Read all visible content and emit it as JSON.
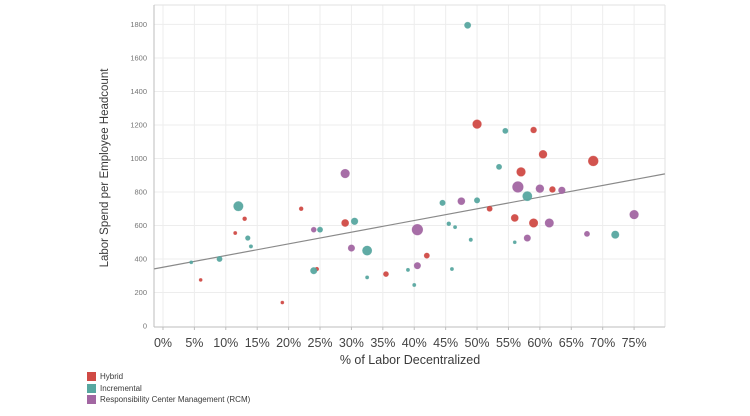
{
  "chart_data": {
    "type": "scatter",
    "title": "",
    "xlabel": "% of Labor Decentralized",
    "ylabel": "Labor Spend per Employee Headcount",
    "x_tick_values": [
      0,
      5,
      10,
      15,
      20,
      25,
      30,
      35,
      40,
      45,
      50,
      55,
      60,
      65,
      70,
      75
    ],
    "x_tick_labels": [
      "0%",
      "5%",
      "10%",
      "15%",
      "20%",
      "25%",
      "30%",
      "35%",
      "40%",
      "45%",
      "50%",
      "55%",
      "60%",
      "65%",
      "70%",
      "75%"
    ],
    "y_tick_values": [
      0,
      200,
      400,
      600,
      800,
      1000,
      1200,
      1400,
      1600,
      1800
    ],
    "y_tick_labels": [
      "0",
      "200",
      "400",
      "600",
      "800",
      "1000",
      "1200",
      "1400",
      "1600",
      "1800"
    ],
    "xlim": [
      -1.43,
      79.92
    ],
    "ylim": [
      0,
      1916
    ],
    "grid": true,
    "legend_position": "bottom-left",
    "series": [
      {
        "name": "Hybrid",
        "color": "#d04a45",
        "points": [
          {
            "x": 50,
            "y": 1205,
            "r": 4.4
          },
          {
            "x": 59,
            "y": 1170,
            "r": 3.0
          },
          {
            "x": 60.5,
            "y": 1025,
            "r": 4.0
          },
          {
            "x": 68.5,
            "y": 985,
            "r": 5.0
          },
          {
            "x": 57,
            "y": 920,
            "r": 4.4
          },
          {
            "x": 62,
            "y": 815,
            "r": 3.0
          },
          {
            "x": 52,
            "y": 700,
            "r": 2.7
          },
          {
            "x": 56,
            "y": 645,
            "r": 3.6
          },
          {
            "x": 59,
            "y": 615,
            "r": 4.3
          },
          {
            "x": 29,
            "y": 615,
            "r": 3.6
          },
          {
            "x": 22,
            "y": 700,
            "r": 2.0
          },
          {
            "x": 13,
            "y": 640,
            "r": 2.0
          },
          {
            "x": 11.5,
            "y": 555,
            "r": 1.7
          },
          {
            "x": 42,
            "y": 420,
            "r": 2.7
          },
          {
            "x": 35.5,
            "y": 310,
            "r": 2.6
          },
          {
            "x": 24.5,
            "y": 340,
            "r": 1.9
          },
          {
            "x": 6,
            "y": 275,
            "r": 1.6
          },
          {
            "x": 19,
            "y": 140,
            "r": 1.6
          }
        ]
      },
      {
        "name": "Incremental",
        "color": "#57a7a0",
        "points": [
          {
            "x": 48.5,
            "y": 1795,
            "r": 3.2
          },
          {
            "x": 54.5,
            "y": 1165,
            "r": 2.7
          },
          {
            "x": 53.5,
            "y": 950,
            "r": 2.7
          },
          {
            "x": 58,
            "y": 775,
            "r": 4.7
          },
          {
            "x": 50,
            "y": 750,
            "r": 2.8
          },
          {
            "x": 44.5,
            "y": 735,
            "r": 2.8
          },
          {
            "x": 12,
            "y": 715,
            "r": 4.8
          },
          {
            "x": 30.5,
            "y": 625,
            "r": 3.4
          },
          {
            "x": 45.5,
            "y": 610,
            "r": 2.0
          },
          {
            "x": 46.5,
            "y": 590,
            "r": 1.7
          },
          {
            "x": 25,
            "y": 575,
            "r": 2.7
          },
          {
            "x": 72,
            "y": 545,
            "r": 3.8
          },
          {
            "x": 13.5,
            "y": 525,
            "r": 2.4
          },
          {
            "x": 49,
            "y": 515,
            "r": 1.8
          },
          {
            "x": 56,
            "y": 500,
            "r": 1.6
          },
          {
            "x": 14,
            "y": 475,
            "r": 1.8
          },
          {
            "x": 32.5,
            "y": 450,
            "r": 4.7
          },
          {
            "x": 9,
            "y": 400,
            "r": 2.7
          },
          {
            "x": 4.5,
            "y": 380,
            "r": 1.6
          },
          {
            "x": 46,
            "y": 340,
            "r": 1.7
          },
          {
            "x": 39,
            "y": 335,
            "r": 1.7
          },
          {
            "x": 24,
            "y": 330,
            "r": 3.3
          },
          {
            "x": 32.5,
            "y": 290,
            "r": 1.7
          },
          {
            "x": 40,
            "y": 245,
            "r": 1.7
          }
        ]
      },
      {
        "name": "Responsibility Center Management (RCM)",
        "color": "#a266a2",
        "points": [
          {
            "x": 29,
            "y": 910,
            "r": 4.4
          },
          {
            "x": 56.5,
            "y": 830,
            "r": 5.4
          },
          {
            "x": 60,
            "y": 820,
            "r": 4.0
          },
          {
            "x": 63.5,
            "y": 810,
            "r": 3.4
          },
          {
            "x": 47.5,
            "y": 745,
            "r": 3.6
          },
          {
            "x": 75,
            "y": 665,
            "r": 4.4
          },
          {
            "x": 61.5,
            "y": 615,
            "r": 4.3
          },
          {
            "x": 40.5,
            "y": 575,
            "r": 5.4
          },
          {
            "x": 24,
            "y": 575,
            "r": 2.6
          },
          {
            "x": 67.5,
            "y": 550,
            "r": 2.7
          },
          {
            "x": 58,
            "y": 525,
            "r": 3.3
          },
          {
            "x": 30,
            "y": 465,
            "r": 3.3
          },
          {
            "x": 40.5,
            "y": 360,
            "r": 3.3
          }
        ]
      }
    ],
    "trend_line": {
      "x1": -1.4,
      "y1": 341,
      "x2": 79.9,
      "y2": 908,
      "color": "#8a8a8a"
    }
  },
  "colors": {
    "grid": "#ededed",
    "border": "#e2e2e2",
    "axis": "#bdbdbd",
    "x_tick_text": "#444444",
    "y_tick_text": "#757575"
  }
}
